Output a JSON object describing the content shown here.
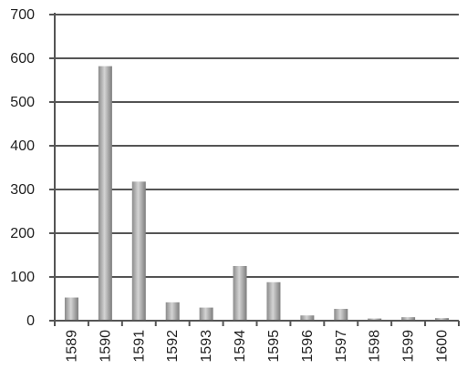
{
  "chart_data": {
    "type": "bar",
    "categories": [
      "1589",
      "1590",
      "1591",
      "1592",
      "1593",
      "1594",
      "1595",
      "1596",
      "1597",
      "1598",
      "1599",
      "1600"
    ],
    "values": [
      53,
      582,
      318,
      42,
      30,
      125,
      88,
      12,
      27,
      5,
      8,
      6
    ],
    "title": "",
    "xlabel": "",
    "ylabel": "",
    "ylim": [
      0,
      700
    ],
    "yticks": [
      "0",
      "100",
      "200",
      "300",
      "400",
      "500",
      "600",
      "700"
    ],
    "grid": true,
    "legend": "none",
    "colors": {
      "bar": "#9a9a9a",
      "bar_light": "#d2d2d2",
      "bar_dark": "#7a7a7a",
      "grid": "#555555",
      "axis": "#555555"
    }
  }
}
